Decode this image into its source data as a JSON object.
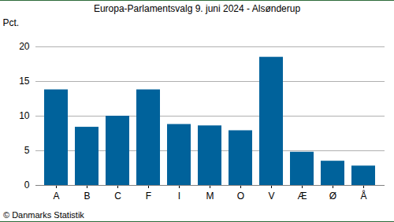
{
  "chart_data": {
    "type": "bar",
    "title": "Europa-Parlamentsvalg 9. juni 2024 - Alsønderup",
    "y_label": "Pct.",
    "caption": "© Danmarks Statistik",
    "categories": [
      "A",
      "B",
      "C",
      "F",
      "I",
      "M",
      "O",
      "V",
      "Æ",
      "Ø",
      "Å"
    ],
    "values": [
      13.8,
      8.4,
      10.0,
      13.8,
      8.8,
      8.6,
      7.9,
      18.5,
      4.8,
      3.5,
      2.8
    ],
    "color": "#00629b",
    "ylim": [
      0,
      20
    ],
    "yticks": [
      0,
      5,
      10,
      15,
      20
    ],
    "grid": true
  }
}
